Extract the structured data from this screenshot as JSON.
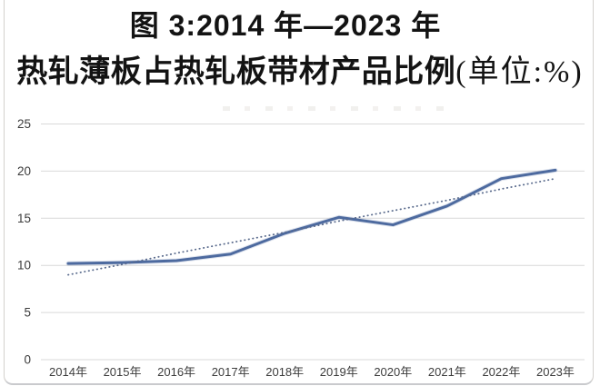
{
  "title": {
    "line1": "图 3:2014 年—2023 年",
    "line2_main": "热轧薄板占热轧板带材产品比例",
    "line2_unit": "(单位:%)"
  },
  "chart_data": {
    "type": "line",
    "title": "图3:2014年—2023年热轧薄板占热轧板带材产品比例",
    "unit": "%",
    "categories": [
      "2014年",
      "2015年",
      "2016年",
      "2017年",
      "2018年",
      "2019年",
      "2020年",
      "2021年",
      "2022年",
      "2023年"
    ],
    "series": [
      {
        "name": "热轧薄板占热轧板带材产品比例",
        "style": "solid",
        "color": "#4d6a9f",
        "values": [
          10.2,
          10.3,
          10.5,
          11.2,
          13.4,
          15.1,
          14.3,
          16.3,
          19.2,
          20.1
        ]
      },
      {
        "name": "趋势线",
        "style": "dotted",
        "color": "#5a6b8d",
        "values": [
          9.0,
          10.1,
          11.3,
          12.4,
          13.5,
          14.7,
          15.8,
          16.9,
          18.1,
          19.2
        ]
      }
    ],
    "ylim": [
      0,
      25
    ],
    "yticks": [
      0,
      5,
      10,
      15,
      20,
      25
    ],
    "grid": "horizontal",
    "gridline_color": "#d9d9d9",
    "legend": "none"
  }
}
